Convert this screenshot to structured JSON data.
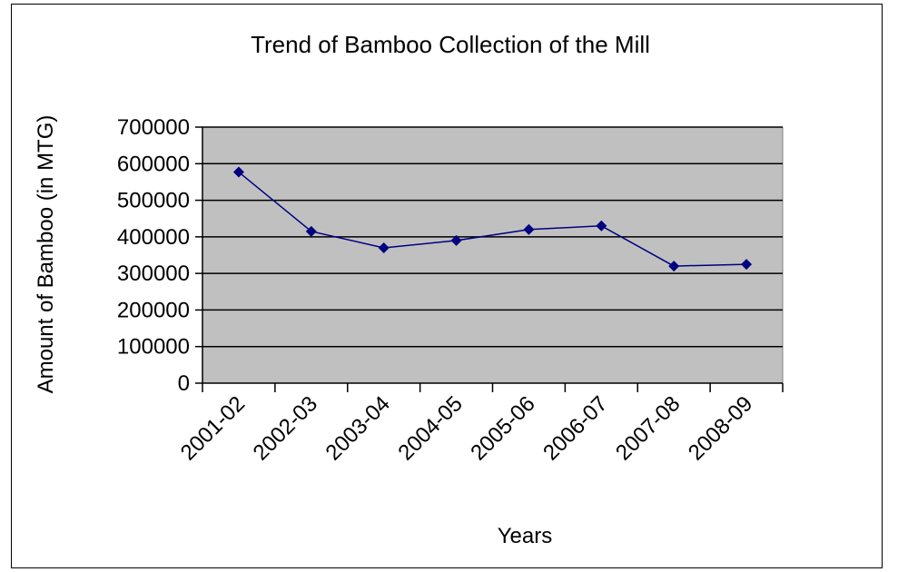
{
  "chart_data": {
    "type": "line",
    "title": "Trend of  Bamboo Collection of the Mill",
    "xlabel": "Years",
    "ylabel": "Amount of Bamboo (in MTG)",
    "categories": [
      "2001-02",
      "2002-03",
      "2003-04",
      "2004-05",
      "2005-06",
      "2006-07",
      "2007-08",
      "2008-09"
    ],
    "values": [
      577000,
      415000,
      370000,
      390000,
      420000,
      430000,
      320000,
      325000
    ],
    "ylim": [
      0,
      700000
    ],
    "yticks": [
      0,
      100000,
      200000,
      300000,
      400000,
      500000,
      600000,
      700000
    ],
    "grid": true,
    "colors": {
      "plot_background": "#C0C0C0",
      "line": "#000080",
      "gridline": "#000000"
    },
    "marker": "diamond"
  }
}
